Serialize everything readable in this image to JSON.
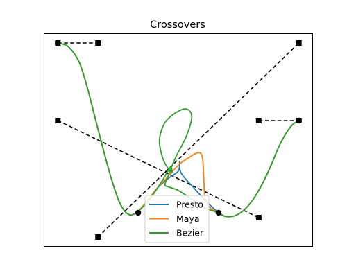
{
  "chart_data": {
    "type": "line",
    "title": "Crossovers",
    "xlabel": "",
    "ylabel": "",
    "xlim": [
      0,
      10
    ],
    "ylim": [
      -1,
      10
    ],
    "grid": false,
    "ticks": false,
    "legend_position": "bottom-center",
    "control_polylines": [
      {
        "name": "tangent-1",
        "points": [
          [
            0.5,
            9.5
          ],
          [
            2.0,
            9.5
          ]
        ]
      },
      {
        "name": "tangent-2",
        "points": [
          [
            0.5,
            5.5
          ],
          [
            8.0,
            0.5
          ]
        ]
      },
      {
        "name": "tangent-3",
        "points": [
          [
            2.0,
            -0.5
          ],
          [
            9.5,
            9.5
          ]
        ]
      },
      {
        "name": "tangent-4",
        "points": [
          [
            8.0,
            5.5
          ],
          [
            9.5,
            5.5
          ]
        ]
      }
    ],
    "knots": [
      [
        0.5,
        9.5
      ],
      [
        3.5,
        0.75
      ],
      [
        6.5,
        0.75
      ],
      [
        9.5,
        5.5
      ]
    ],
    "series": [
      {
        "name": "Presto",
        "color": "#1f77b4",
        "points": [
          [
            0.5,
            9.5
          ],
          [
            0.9,
            9.3
          ],
          [
            1.3,
            8.5
          ],
          [
            1.6,
            7.2
          ],
          [
            1.9,
            5.6
          ],
          [
            2.2,
            4.0
          ],
          [
            2.5,
            2.5
          ],
          [
            2.8,
            1.3
          ],
          [
            3.1,
            0.7
          ],
          [
            3.4,
            0.72
          ],
          [
            3.8,
            1.3
          ],
          [
            4.2,
            2.0
          ],
          [
            4.6,
            2.5
          ],
          [
            5.0,
            2.9
          ],
          [
            5.05,
            3.4
          ],
          [
            5.1,
            2.8
          ],
          [
            5.6,
            2.0
          ],
          [
            6.0,
            1.4
          ],
          [
            6.5,
            0.75
          ],
          [
            6.8,
            0.55
          ],
          [
            7.2,
            0.65
          ],
          [
            7.6,
            1.1
          ],
          [
            8.0,
            1.9
          ],
          [
            8.4,
            3.0
          ],
          [
            8.8,
            4.3
          ],
          [
            9.2,
            5.2
          ],
          [
            9.5,
            5.5
          ]
        ]
      },
      {
        "name": "Maya",
        "color": "#ff7f0e",
        "points": [
          [
            0.5,
            9.5
          ],
          [
            0.9,
            9.3
          ],
          [
            1.3,
            8.5
          ],
          [
            1.6,
            7.2
          ],
          [
            1.9,
            5.6
          ],
          [
            2.2,
            4.0
          ],
          [
            2.5,
            2.5
          ],
          [
            2.8,
            1.3
          ],
          [
            3.1,
            0.7
          ],
          [
            3.4,
            0.72
          ],
          [
            3.8,
            1.3
          ],
          [
            4.2,
            2.0
          ],
          [
            4.6,
            2.6
          ],
          [
            5.0,
            3.2
          ],
          [
            5.4,
            3.6
          ],
          [
            5.75,
            3.85
          ],
          [
            5.9,
            3.6
          ],
          [
            5.95,
            2.5
          ],
          [
            6.0,
            1.5
          ],
          [
            6.2,
            1.0
          ],
          [
            6.5,
            0.75
          ],
          [
            6.8,
            0.55
          ],
          [
            7.2,
            0.65
          ],
          [
            7.6,
            1.1
          ],
          [
            8.0,
            1.9
          ],
          [
            8.4,
            3.0
          ],
          [
            8.8,
            4.3
          ],
          [
            9.2,
            5.2
          ],
          [
            9.5,
            5.5
          ]
        ]
      },
      {
        "name": "Bezier",
        "color": "#2ca02c",
        "points": [
          [
            0.5,
            9.5
          ],
          [
            0.9,
            9.3
          ],
          [
            1.3,
            8.5
          ],
          [
            1.6,
            7.2
          ],
          [
            1.9,
            5.6
          ],
          [
            2.2,
            4.0
          ],
          [
            2.5,
            2.5
          ],
          [
            2.8,
            1.3
          ],
          [
            3.1,
            0.7
          ],
          [
            3.4,
            0.72
          ],
          [
            3.9,
            1.4
          ],
          [
            4.4,
            2.4
          ],
          [
            4.7,
            3.1
          ],
          [
            4.75,
            2.8
          ],
          [
            4.5,
            3.3
          ],
          [
            4.35,
            3.9
          ],
          [
            4.3,
            4.6
          ],
          [
            4.5,
            5.4
          ],
          [
            4.9,
            5.9
          ],
          [
            5.3,
            6.1
          ],
          [
            5.5,
            5.7
          ],
          [
            5.3,
            4.7
          ],
          [
            4.9,
            3.6
          ],
          [
            4.6,
            2.6
          ],
          [
            4.5,
            2.2
          ],
          [
            4.6,
            2.1
          ],
          [
            5.0,
            1.9
          ],
          [
            5.5,
            1.45
          ],
          [
            6.0,
            1.0
          ],
          [
            6.5,
            0.75
          ],
          [
            6.8,
            0.55
          ],
          [
            7.2,
            0.65
          ],
          [
            7.6,
            1.1
          ],
          [
            8.0,
            1.9
          ],
          [
            8.4,
            3.0
          ],
          [
            8.8,
            4.3
          ],
          [
            9.2,
            5.2
          ],
          [
            9.5,
            5.5
          ]
        ]
      }
    ]
  }
}
